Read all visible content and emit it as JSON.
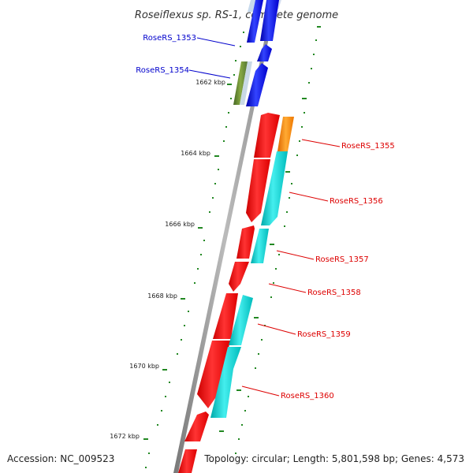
{
  "title": "Roseiflexus sp. RS-1, complete genome",
  "footer": {
    "accession": "Accession: NC_009523",
    "summary": "Topology: circular; Length: 5,801,598 bp; Genes: 4,573"
  },
  "coordinate_labels": [
    "1662 kbp",
    "1664 kbp",
    "1666 kbp",
    "1668 kbp",
    "1670 kbp",
    "1672 kbp"
  ],
  "gene_labels": {
    "rs1353": "RoseRS_1353",
    "rs1354": "RoseRS_1354",
    "rs1355": "RoseRS_1355",
    "rs1356": "RoseRS_1356",
    "rs1357": "RoseRS_1357",
    "rs1358": "RoseRS_1358",
    "rs1359": "RoseRS_1359",
    "rs1360": "RoseRS_1360"
  },
  "colors": {
    "backbone": "#888888",
    "forward_cds": "#ff0000",
    "reverse_cds": "#00cccc",
    "highlight_cds": "#0000ee",
    "orange_feature": "#ff8800",
    "olive_feature": "#669933",
    "tick_marks": "#228822",
    "label_blue": "#0000cc",
    "label_red": "#dd0000"
  }
}
